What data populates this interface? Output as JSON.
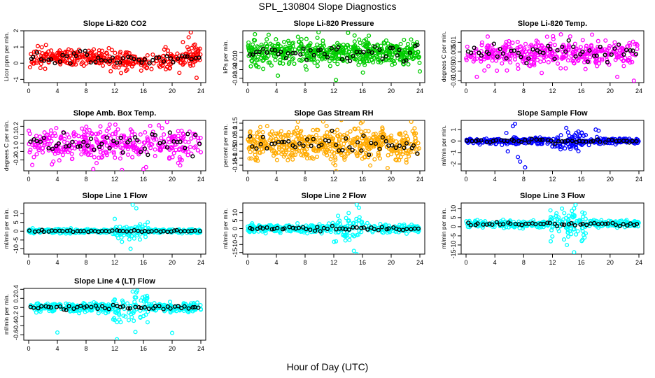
{
  "page": {
    "title": "SPL_130804  Slope Diagnostics",
    "x_caption": "Hour of Day (UTC)"
  },
  "chart_data": [
    {
      "type": "scatter",
      "title": "Slope Li-820 CO2",
      "ylabel": "Licor ppm per min.",
      "xlim": [
        0,
        24
      ],
      "xticks": [
        0,
        4,
        8,
        12,
        16,
        20,
        24
      ],
      "ylim": [
        -1.2,
        2.0
      ],
      "yticks": [
        -1.0,
        0.0,
        1.0,
        2.0
      ],
      "color": "#ff0000",
      "center": 0.25,
      "spread": 0.28,
      "mode": "co2",
      "outliers": [
        [
          21.5,
          1.3
        ],
        [
          22.3,
          1.6
        ],
        [
          22.6,
          1.9
        ],
        [
          23.0,
          1.1
        ],
        [
          21.0,
          -0.6
        ],
        [
          23.4,
          -0.9
        ]
      ]
    },
    {
      "type": "scatter",
      "title": "Slope Li-820 Pressure",
      "ylabel": "kPa per min.",
      "xlim": [
        0,
        24
      ],
      "xticks": [
        0,
        4,
        8,
        12,
        16,
        20,
        24
      ],
      "ylim": [
        -0.035,
        0.025
      ],
      "yticks": [
        -0.03,
        -0.02,
        -0.01,
        0.0
      ],
      "color": "#00cc00",
      "center": 0.0,
      "spread": 0.007,
      "mode": "band",
      "outliers": [
        [
          1.0,
          0.021
        ],
        [
          1.5,
          -0.017
        ],
        [
          4.2,
          -0.027
        ],
        [
          7.0,
          0.018
        ],
        [
          8.2,
          -0.02
        ],
        [
          12.3,
          -0.032
        ],
        [
          16.2,
          -0.01
        ],
        [
          16.5,
          0.015
        ],
        [
          20.5,
          -0.013
        ],
        [
          24.0,
          -0.022
        ]
      ]
    },
    {
      "type": "scatter",
      "title": "Slope Li-820 Temp.",
      "ylabel": "degrees C per min.",
      "xlim": [
        0,
        24
      ],
      "xticks": [
        0,
        4,
        8,
        12,
        16,
        20,
        24
      ],
      "ylim": [
        -0.011,
        0.016
      ],
      "yticks": [
        -0.01,
        -0.005,
        0.0,
        0.005,
        0.01
      ],
      "color": "#ff00ff",
      "center": 0.004,
      "spread": 0.0035,
      "mode": "scatter",
      "outliers": [
        [
          1.5,
          -0.008
        ],
        [
          17.5,
          0.014
        ],
        [
          21.0,
          -0.008
        ],
        [
          23.3,
          -0.01
        ],
        [
          3.0,
          0.013
        ],
        [
          10.5,
          -0.006
        ]
      ]
    },
    {
      "type": "scatter",
      "title": "Slope Amb. Box Temp.",
      "ylabel": "degrees C per min.",
      "xlim": [
        0,
        24
      ],
      "xticks": [
        0,
        4,
        8,
        12,
        16,
        20,
        24
      ],
      "ylim": [
        -0.33,
        0.27
      ],
      "yticks": [
        -0.2,
        -0.1,
        0.0,
        0.1,
        0.2
      ],
      "color": "#ff00ff",
      "center": 0.0,
      "spread": 0.09,
      "mode": "scatter",
      "outliers": [
        [
          9.0,
          -0.31
        ],
        [
          13.0,
          -0.32
        ],
        [
          16.0,
          -0.31
        ],
        [
          19.3,
          0.25
        ],
        [
          11.3,
          0.22
        ],
        [
          0.5,
          -0.26
        ]
      ]
    },
    {
      "type": "scatter",
      "title": "Slope Gas Stream RH",
      "ylabel": "percent per min.",
      "xlim": [
        0,
        24
      ],
      "xticks": [
        0,
        4,
        8,
        12,
        16,
        20,
        24
      ],
      "ylim": [
        -0.19,
        0.17
      ],
      "yticks": [
        -0.15,
        -0.1,
        -0.05,
        0.0,
        0.05,
        0.1,
        0.15
      ],
      "color": "#ffaa00",
      "center": 0.0,
      "spread": 0.06,
      "mode": "band",
      "outliers": [
        [
          7.0,
          0.16
        ],
        [
          16.0,
          0.16
        ],
        [
          22.8,
          0.16
        ],
        [
          19.5,
          -0.17
        ],
        [
          12.2,
          -0.15
        ]
      ]
    },
    {
      "type": "scatter",
      "title": "Slope Sample Flow",
      "ylabel": "ml/min per min.",
      "xlim": [
        0,
        24
      ],
      "xticks": [
        0,
        4,
        8,
        12,
        16,
        20,
        24
      ],
      "ylim": [
        -2.6,
        1.8
      ],
      "yticks": [
        -2,
        -1,
        0,
        1
      ],
      "color": "#0000ff",
      "center": 0.0,
      "spread": 0.12,
      "mode": "flow",
      "outliers": [
        [
          6.5,
          1.3
        ],
        [
          6.8,
          1.5
        ],
        [
          7.2,
          -1.4
        ],
        [
          7.5,
          -1.8
        ],
        [
          8.2,
          -2.3
        ],
        [
          18.0,
          1.0
        ],
        [
          18.4,
          0.9
        ],
        [
          14.5,
          -0.7
        ],
        [
          5.8,
          -0.9
        ],
        [
          5.6,
          0.7
        ]
      ]
    },
    {
      "type": "scatter",
      "title": "Slope Line 1 Flow",
      "ylabel": "ml/min per min.",
      "xlim": [
        0,
        24
      ],
      "xticks": [
        0,
        4,
        8,
        12,
        16,
        20,
        24
      ],
      "ylim": [
        -13,
        16
      ],
      "yticks": [
        -10,
        -5,
        0,
        5,
        10
      ],
      "color": "#00ffff",
      "center": 0.0,
      "spread": 0.6,
      "mode": "line",
      "outliers": [
        [
          14.5,
          15
        ],
        [
          15.0,
          13
        ],
        [
          13.0,
          -6
        ],
        [
          14.2,
          -10
        ],
        [
          12.0,
          7
        ],
        [
          12.5,
          -4
        ]
      ]
    },
    {
      "type": "scatter",
      "title": "Slope Line 2 Flow",
      "ylabel": "ml/min per min.",
      "xlim": [
        0,
        24
      ],
      "xticks": [
        0,
        4,
        8,
        12,
        16,
        20,
        24
      ],
      "ylim": [
        -16,
        16
      ],
      "yticks": [
        -15,
        -10,
        -5,
        0,
        5,
        10
      ],
      "color": "#00ffff",
      "center": 0.0,
      "spread": 1.2,
      "mode": "line",
      "outliers": [
        [
          15.2,
          15
        ],
        [
          15.5,
          13
        ],
        [
          14.8,
          -14
        ],
        [
          15.2,
          -16
        ],
        [
          12.6,
          8
        ],
        [
          12.3,
          -8
        ]
      ]
    },
    {
      "type": "scatter",
      "title": "Slope Line 3 Flow",
      "ylabel": "ml/min per min.",
      "xlim": [
        0,
        24
      ],
      "xticks": [
        0,
        4,
        8,
        12,
        16,
        20,
        24
      ],
      "ylim": [
        -15,
        13
      ],
      "yticks": [
        -15,
        -10,
        -5,
        0,
        5,
        10
      ],
      "color": "#00ffff",
      "center": 1.5,
      "spread": 1.0,
      "mode": "line",
      "outliers": [
        [
          15.2,
          12
        ],
        [
          15.0,
          10
        ],
        [
          14.0,
          -10
        ],
        [
          15.0,
          -14
        ],
        [
          12.5,
          6
        ],
        [
          13.6,
          -7
        ]
      ]
    },
    {
      "type": "scatter",
      "title": "Slope Line 4 (LT) Flow",
      "ylabel": "ml/min per min.",
      "xlim": [
        0,
        24
      ],
      "xticks": [
        0,
        4,
        8,
        12,
        16,
        20,
        24
      ],
      "ylim": [
        -0.72,
        0.42
      ],
      "yticks": [
        -0.6,
        -0.4,
        -0.2,
        0.0,
        0.2,
        0.4
      ],
      "color": "#00ffff",
      "center": 0.0,
      "spread": 0.05,
      "mode": "line",
      "outliers": [
        [
          4.0,
          -0.55
        ],
        [
          12.3,
          -0.7
        ],
        [
          20.0,
          -0.56
        ],
        [
          14.5,
          0.35
        ],
        [
          15.0,
          0.33
        ],
        [
          16.2,
          0.24
        ],
        [
          13.5,
          -0.2
        ]
      ]
    }
  ]
}
